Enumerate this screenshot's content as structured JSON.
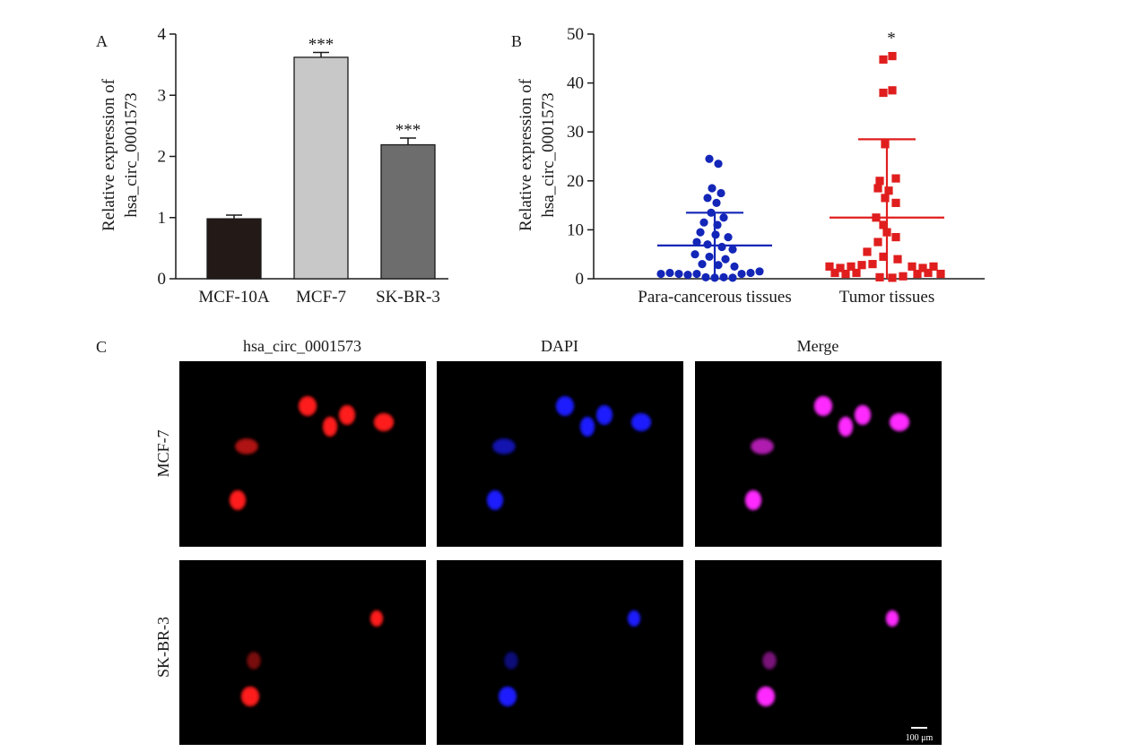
{
  "chart_data": [
    {
      "panel": "A",
      "type": "bar",
      "ylabel_line1": "Relative expression of",
      "ylabel_line2": "hsa_circ_0001573",
      "xlabel": "",
      "ylim": [
        0,
        4
      ],
      "yticks": [
        0,
        1,
        2,
        3,
        4
      ],
      "categories": [
        "MCF-10A",
        "MCF-7",
        "SK-BR-3"
      ],
      "values": [
        0.98,
        3.62,
        2.19
      ],
      "errors": [
        0.06,
        0.08,
        0.11
      ],
      "significance": [
        "",
        "***",
        "***"
      ],
      "colors": [
        "#231a17",
        "#c8c8c8",
        "#6d6d6d"
      ]
    },
    {
      "panel": "B",
      "type": "scatter",
      "ylabel_line1": "Relative expression of",
      "ylabel_line2": "hsa_circ_0001573",
      "xlabel": "",
      "ylim": [
        0,
        50
      ],
      "yticks": [
        0,
        10,
        20,
        30,
        40,
        50
      ],
      "categories": [
        "Para-cancerous tissues",
        "Tumor tissues"
      ],
      "series": [
        {
          "category": "Para-cancerous tissues",
          "color": "#1326b8",
          "marker": "circle",
          "mean": 6.8,
          "sd_upper": 13.5,
          "sd_lower": 0,
          "significance": "",
          "points": [
            {
              "dx": -6,
              "y": 24.5
            },
            {
              "dx": 4,
              "y": 23.5
            },
            {
              "dx": -3,
              "y": 18.5
            },
            {
              "dx": 7,
              "y": 17.5
            },
            {
              "dx": -8,
              "y": 16.5
            },
            {
              "dx": 2,
              "y": 15.5
            },
            {
              "dx": -4,
              "y": 13.5
            },
            {
              "dx": 10,
              "y": 12.5
            },
            {
              "dx": -12,
              "y": 11.5
            },
            {
              "dx": 3,
              "y": 11.0
            },
            {
              "dx": -16,
              "y": 9.5
            },
            {
              "dx": 1,
              "y": 9.0
            },
            {
              "dx": 15,
              "y": 8.5
            },
            {
              "dx": -20,
              "y": 7.5
            },
            {
              "dx": -8,
              "y": 7.0
            },
            {
              "dx": 8,
              "y": 6.5
            },
            {
              "dx": 20,
              "y": 6.0
            },
            {
              "dx": -22,
              "y": 5.0
            },
            {
              "dx": -6,
              "y": 4.5
            },
            {
              "dx": 12,
              "y": 4.0
            },
            {
              "dx": -14,
              "y": 3.0
            },
            {
              "dx": 4,
              "y": 2.8
            },
            {
              "dx": 22,
              "y": 2.5
            },
            {
              "dx": -60,
              "y": 1.0
            },
            {
              "dx": -50,
              "y": 1.2
            },
            {
              "dx": -40,
              "y": 1.0
            },
            {
              "dx": -30,
              "y": 0.8
            },
            {
              "dx": -20,
              "y": 1.0
            },
            {
              "dx": 30,
              "y": 1.0
            },
            {
              "dx": 40,
              "y": 1.2
            },
            {
              "dx": 50,
              "y": 1.5
            },
            {
              "dx": -10,
              "y": 0.3
            },
            {
              "dx": 0,
              "y": 0.2
            },
            {
              "dx": 10,
              "y": 0.3
            },
            {
              "dx": 20,
              "y": 0.2
            }
          ]
        },
        {
          "category": "Tumor tissues",
          "color": "#e01e1e",
          "marker": "square",
          "mean": 12.5,
          "sd_upper": 28.5,
          "sd_lower": 0,
          "significance": "*",
          "points": [
            {
              "dx": 6,
              "y": 45.5
            },
            {
              "dx": -4,
              "y": 44.8
            },
            {
              "dx": 6,
              "y": 38.5
            },
            {
              "dx": -4,
              "y": 38.0
            },
            {
              "dx": -2,
              "y": 27.5
            },
            {
              "dx": 10,
              "y": 20.5
            },
            {
              "dx": -8,
              "y": 20.0
            },
            {
              "dx": -10,
              "y": 18.5
            },
            {
              "dx": 2,
              "y": 18.0
            },
            {
              "dx": -2,
              "y": 16.5
            },
            {
              "dx": 10,
              "y": 15.5
            },
            {
              "dx": -12,
              "y": 12.5
            },
            {
              "dx": -4,
              "y": 11.0
            },
            {
              "dx": 0,
              "y": 9.5
            },
            {
              "dx": 10,
              "y": 8.5
            },
            {
              "dx": -10,
              "y": 7.5
            },
            {
              "dx": -22,
              "y": 5.5
            },
            {
              "dx": -4,
              "y": 4.5
            },
            {
              "dx": 12,
              "y": 4.0
            },
            {
              "dx": -64,
              "y": 2.5
            },
            {
              "dx": -52,
              "y": 2.2
            },
            {
              "dx": -40,
              "y": 2.5
            },
            {
              "dx": -28,
              "y": 2.8
            },
            {
              "dx": -16,
              "y": 3.0
            },
            {
              "dx": 28,
              "y": 2.5
            },
            {
              "dx": 40,
              "y": 2.2
            },
            {
              "dx": 52,
              "y": 2.5
            },
            {
              "dx": -58,
              "y": 1.2
            },
            {
              "dx": -46,
              "y": 1.0
            },
            {
              "dx": -34,
              "y": 1.2
            },
            {
              "dx": 34,
              "y": 1.0
            },
            {
              "dx": 46,
              "y": 1.2
            },
            {
              "dx": 60,
              "y": 1.0
            },
            {
              "dx": -8,
              "y": 0.3
            },
            {
              "dx": 6,
              "y": 0.2
            },
            {
              "dx": 18,
              "y": 0.5
            }
          ]
        }
      ]
    }
  ],
  "panel_labels": {
    "a": "A",
    "b": "B",
    "c": "C"
  },
  "micrographs": {
    "column_titles": [
      "hsa_circ_0001573",
      "DAPI",
      "Merge"
    ],
    "row_labels": [
      "MCF-7",
      "SK-BR-3"
    ],
    "channel_colors": {
      "circ": "#ff1a1a",
      "dapi": "#1a1aff",
      "merge": "#ff2aff"
    },
    "scale_bar_label": "100 μm"
  }
}
